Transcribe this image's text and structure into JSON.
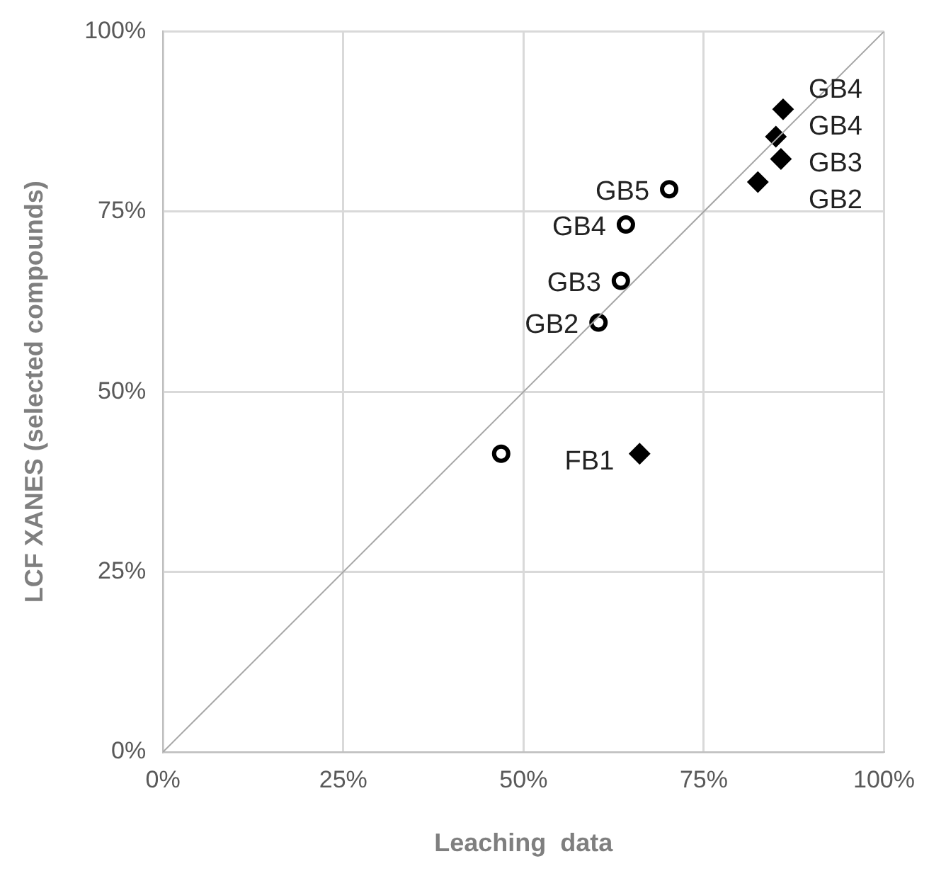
{
  "chart_data": {
    "type": "scatter",
    "xlabel": "Leaching  data",
    "ylabel": "LCF XANES (selected compounds)",
    "xlim": [
      0,
      100
    ],
    "ylim": [
      0,
      100
    ],
    "xticks": [
      {
        "value": 0,
        "label": "0%"
      },
      {
        "value": 25,
        "label": "25%"
      },
      {
        "value": 50,
        "label": "50%"
      },
      {
        "value": 75,
        "label": "75%"
      },
      {
        "value": 100,
        "label": "100%"
      }
    ],
    "yticks": [
      {
        "value": 0,
        "label": "0%"
      },
      {
        "value": 25,
        "label": "25%"
      },
      {
        "value": 50,
        "label": "50%"
      },
      {
        "value": 75,
        "label": "75%"
      },
      {
        "value": 100,
        "label": "100%"
      }
    ],
    "grid": true,
    "legend": false,
    "series": [
      {
        "type": "line",
        "color": "#a6a6a6",
        "x": [
          0,
          100
        ],
        "values": [
          0,
          100
        ],
        "marker": "none"
      },
      {
        "color": "#000000",
        "marker": "circle",
        "x": [
          70.2,
          64.2,
          63.5,
          60.4,
          46.9
        ],
        "values": [
          78.1,
          73.2,
          65.4,
          59.6,
          41.4
        ],
        "value_labels": [
          "GB5",
          "GB4",
          "GB3",
          "GB2",
          null
        ]
      },
      {
        "color": "#000000",
        "marker": "diamond",
        "x": [
          86.0,
          85.0,
          85.7,
          82.5,
          66.1
        ],
        "values": [
          89.2,
          85.4,
          82.3,
          79.1,
          41.4
        ],
        "value_labels": [
          "GB4",
          "GB4",
          "GB3",
          "GB2",
          "FB1"
        ]
      }
    ]
  }
}
